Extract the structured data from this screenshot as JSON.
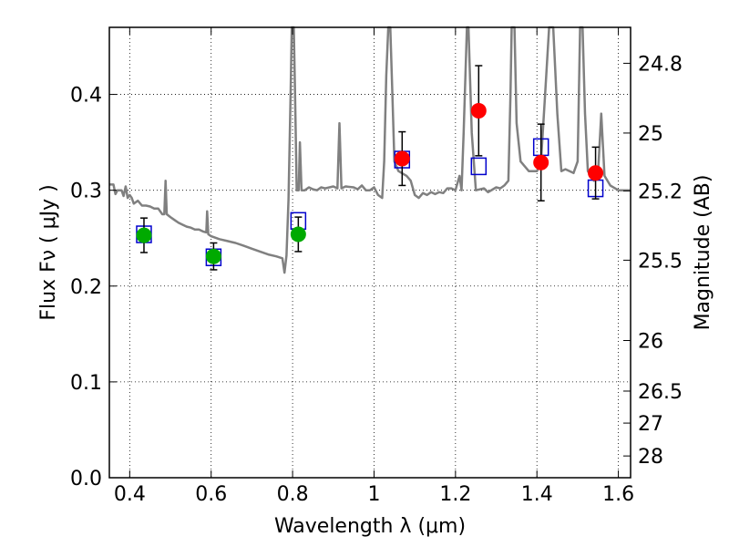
{
  "chart_data": {
    "type": "scatter",
    "xlabel": "Wavelength  λ (μm)",
    "ylabel": "Flux  Fν  ( μJy )",
    "ylabel_right": "Magnitude (AB)",
    "xlim": [
      0.35,
      1.63
    ],
    "ylim": [
      0.0,
      0.47
    ],
    "x_ticks": [
      0.4,
      0.6,
      0.8,
      1.0,
      1.2,
      1.4,
      1.6
    ],
    "x_tick_labels": [
      "0.4",
      "0.6",
      "0.8",
      "1",
      "1.2",
      "1.4",
      "1.6"
    ],
    "y_ticks": [
      0.0,
      0.1,
      0.2,
      0.3,
      0.4
    ],
    "y_tick_labels": [
      "0.0",
      "0.1",
      "0.2",
      "0.3",
      "0.4"
    ],
    "right_ticks": [
      {
        "label": "24.8",
        "flux": 0.4325
      },
      {
        "label": "25",
        "flux": 0.3597
      },
      {
        "label": "25.2",
        "flux": 0.2993
      },
      {
        "label": "25.5",
        "flux": 0.227
      },
      {
        "label": "26",
        "flux": 0.1432
      },
      {
        "label": "26.5",
        "flux": 0.0904
      },
      {
        "label": "27",
        "flux": 0.057
      },
      {
        "label": "28",
        "flux": 0.0227
      }
    ],
    "grid": true,
    "series": [
      {
        "marker": "circle",
        "color": "#00aa00",
        "points": [
          {
            "x": 0.435,
            "y": 0.253,
            "err": 0.018
          },
          {
            "x": 0.606,
            "y": 0.231,
            "err": 0.014
          },
          {
            "x": 0.814,
            "y": 0.254,
            "err": 0.018
          }
        ]
      },
      {
        "marker": "circle",
        "color": "#ff0000",
        "points": [
          {
            "x": 1.069,
            "y": 0.333,
            "err": 0.028
          },
          {
            "x": 1.257,
            "y": 0.383,
            "err": 0.047
          },
          {
            "x": 1.41,
            "y": 0.329,
            "err": 0.04
          },
          {
            "x": 1.544,
            "y": 0.318,
            "err": 0.027
          }
        ]
      },
      {
        "marker": "open-square",
        "color": "#0000cc",
        "points": [
          {
            "x": 0.435,
            "y": 0.254
          },
          {
            "x": 0.606,
            "y": 0.23
          },
          {
            "x": 0.814,
            "y": 0.268
          },
          {
            "x": 1.069,
            "y": 0.332
          },
          {
            "x": 1.257,
            "y": 0.325
          },
          {
            "x": 1.41,
            "y": 0.345
          },
          {
            "x": 1.544,
            "y": 0.302
          }
        ]
      },
      {
        "type": "line",
        "color": "#808080",
        "points": [
          [
            0.35,
            0.306
          ],
          [
            0.36,
            0.306
          ],
          [
            0.365,
            0.296
          ],
          [
            0.37,
            0.3
          ],
          [
            0.38,
            0.3
          ],
          [
            0.385,
            0.294
          ],
          [
            0.39,
            0.304
          ],
          [
            0.395,
            0.292
          ],
          [
            0.4,
            0.295
          ],
          [
            0.405,
            0.292
          ],
          [
            0.41,
            0.286
          ],
          [
            0.42,
            0.289
          ],
          [
            0.43,
            0.284
          ],
          [
            0.44,
            0.284
          ],
          [
            0.45,
            0.283
          ],
          [
            0.46,
            0.281
          ],
          [
            0.47,
            0.281
          ],
          [
            0.48,
            0.275
          ],
          [
            0.485,
            0.275
          ],
          [
            0.488,
            0.31
          ],
          [
            0.491,
            0.275
          ],
          [
            0.5,
            0.272
          ],
          [
            0.51,
            0.269
          ],
          [
            0.52,
            0.266
          ],
          [
            0.53,
            0.264
          ],
          [
            0.54,
            0.262
          ],
          [
            0.55,
            0.261
          ],
          [
            0.56,
            0.259
          ],
          [
            0.57,
            0.259
          ],
          [
            0.58,
            0.257
          ],
          [
            0.588,
            0.256
          ],
          [
            0.59,
            0.278
          ],
          [
            0.593,
            0.254
          ],
          [
            0.6,
            0.252
          ],
          [
            0.62,
            0.249
          ],
          [
            0.64,
            0.247
          ],
          [
            0.66,
            0.245
          ],
          [
            0.68,
            0.242
          ],
          [
            0.7,
            0.239
          ],
          [
            0.72,
            0.236
          ],
          [
            0.74,
            0.233
          ],
          [
            0.76,
            0.231
          ],
          [
            0.775,
            0.229
          ],
          [
            0.78,
            0.214
          ],
          [
            0.785,
            0.232
          ],
          [
            0.79,
            0.29
          ],
          [
            0.795,
            0.4
          ],
          [
            0.798,
            0.47
          ],
          [
            0.803,
            0.47
          ],
          [
            0.806,
            0.4
          ],
          [
            0.81,
            0.3
          ],
          [
            0.815,
            0.3
          ],
          [
            0.818,
            0.35
          ],
          [
            0.822,
            0.3
          ],
          [
            0.83,
            0.3
          ],
          [
            0.84,
            0.303
          ],
          [
            0.85,
            0.301
          ],
          [
            0.86,
            0.3
          ],
          [
            0.87,
            0.303
          ],
          [
            0.88,
            0.302
          ],
          [
            0.9,
            0.304
          ],
          [
            0.91,
            0.302
          ],
          [
            0.915,
            0.37
          ],
          [
            0.92,
            0.302
          ],
          [
            0.93,
            0.304
          ],
          [
            0.95,
            0.303
          ],
          [
            0.96,
            0.301
          ],
          [
            0.97,
            0.305
          ],
          [
            0.98,
            0.3
          ],
          [
            0.99,
            0.3
          ],
          [
            1.0,
            0.303
          ],
          [
            1.01,
            0.295
          ],
          [
            1.02,
            0.292
          ],
          [
            1.025,
            0.33
          ],
          [
            1.03,
            0.42
          ],
          [
            1.035,
            0.47
          ],
          [
            1.04,
            0.47
          ],
          [
            1.045,
            0.4
          ],
          [
            1.05,
            0.33
          ],
          [
            1.06,
            0.32
          ],
          [
            1.08,
            0.315
          ],
          [
            1.09,
            0.31
          ],
          [
            1.1,
            0.295
          ],
          [
            1.11,
            0.292
          ],
          [
            1.12,
            0.297
          ],
          [
            1.13,
            0.295
          ],
          [
            1.14,
            0.298
          ],
          [
            1.15,
            0.296
          ],
          [
            1.16,
            0.298
          ],
          [
            1.17,
            0.297
          ],
          [
            1.18,
            0.302
          ],
          [
            1.19,
            0.302
          ],
          [
            1.2,
            0.3
          ],
          [
            1.21,
            0.315
          ],
          [
            1.215,
            0.3
          ],
          [
            1.22,
            0.36
          ],
          [
            1.228,
            0.47
          ],
          [
            1.232,
            0.47
          ],
          [
            1.24,
            0.36
          ],
          [
            1.25,
            0.3
          ],
          [
            1.27,
            0.302
          ],
          [
            1.28,
            0.298
          ],
          [
            1.3,
            0.303
          ],
          [
            1.31,
            0.302
          ],
          [
            1.32,
            0.305
          ],
          [
            1.33,
            0.31
          ],
          [
            1.335,
            0.4
          ],
          [
            1.338,
            0.47
          ],
          [
            1.345,
            0.47
          ],
          [
            1.35,
            0.37
          ],
          [
            1.36,
            0.33
          ],
          [
            1.38,
            0.32
          ],
          [
            1.4,
            0.32
          ],
          [
            1.41,
            0.33
          ],
          [
            1.42,
            0.4
          ],
          [
            1.43,
            0.47
          ],
          [
            1.44,
            0.47
          ],
          [
            1.45,
            0.38
          ],
          [
            1.46,
            0.32
          ],
          [
            1.47,
            0.322
          ],
          [
            1.49,
            0.318
          ],
          [
            1.5,
            0.33
          ],
          [
            1.506,
            0.47
          ],
          [
            1.512,
            0.47
          ],
          [
            1.518,
            0.38
          ],
          [
            1.525,
            0.32
          ],
          [
            1.54,
            0.31
          ],
          [
            1.55,
            0.318
          ],
          [
            1.558,
            0.38
          ],
          [
            1.566,
            0.315
          ],
          [
            1.58,
            0.305
          ],
          [
            1.6,
            0.3
          ],
          [
            1.62,
            0.3
          ],
          [
            1.63,
            0.3
          ]
        ]
      }
    ]
  }
}
